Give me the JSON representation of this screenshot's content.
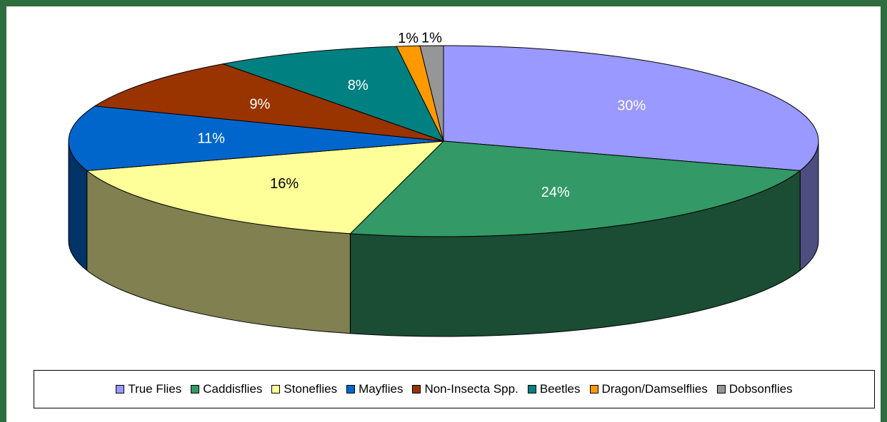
{
  "chart_data": {
    "type": "pie",
    "categories": [
      "True Flies",
      "Caddisflies",
      "Stoneflies",
      "Mayflies",
      "Non-Insecta Spp.",
      "Beetles",
      "Dragon/Damselflies",
      "Dobsonflies"
    ],
    "values": [
      30,
      24,
      16,
      11,
      9,
      8,
      1,
      1
    ],
    "labels": [
      "30%",
      "24%",
      "16%",
      "11%",
      "9%",
      "8%",
      "1%",
      "1%"
    ],
    "colors": [
      "#9999ff",
      "#339966",
      "#ffff99",
      "#0066cc",
      "#993300",
      "#008080",
      "#ff9900",
      "#969696"
    ],
    "side_colors": [
      "#4d4d80",
      "#1a4d33",
      "#808050",
      "#003366",
      "#4d1a00",
      "#004040",
      "#804d00",
      "#4b4b4b"
    ],
    "label_colors": [
      "#ffffff",
      "#ffffff",
      "#000000",
      "#ffffff",
      "#ffffff",
      "#ffffff",
      "#000000",
      "#000000"
    ],
    "three_d": true,
    "legend": "bottom"
  }
}
